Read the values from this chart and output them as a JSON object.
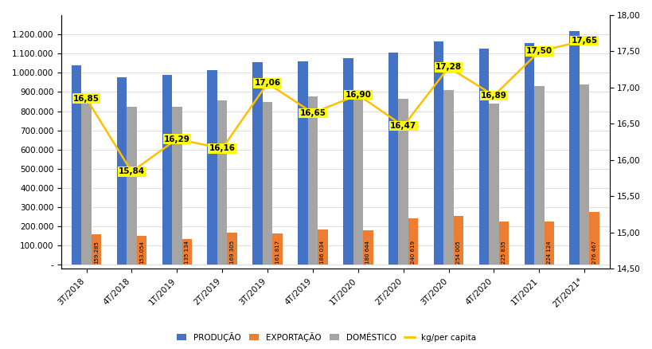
{
  "categories": [
    "3T/2018",
    "4T/2018",
    "1T/2019",
    "2T/2019",
    "3T/2019",
    "4T/2019",
    "1T/2020",
    "2T/2020",
    "3T/2020",
    "4T/2020",
    "1T/2021",
    "2T/2021*"
  ],
  "producao": [
    1040000,
    975000,
    990000,
    1015000,
    1055000,
    1060000,
    1075000,
    1105000,
    1165000,
    1125000,
    1155000,
    1215000
  ],
  "exportacao": [
    159285,
    153054,
    135134,
    169305,
    161817,
    186034,
    180644,
    240619,
    254005,
    225835,
    224124,
    276467
  ],
  "domestico": [
    840000,
    825000,
    825000,
    855000,
    850000,
    875000,
    865000,
    865000,
    910000,
    840000,
    930000,
    940000
  ],
  "kg_per_capita": [
    16.85,
    15.84,
    16.29,
    16.16,
    17.06,
    16.65,
    16.9,
    16.47,
    17.28,
    16.89,
    17.5,
    17.65
  ],
  "exportacao_labels": [
    "159.285",
    "153.054",
    "135 134",
    "169 305",
    "161 817",
    "186 034",
    "180 644",
    "240 619",
    "254 005",
    "225 835",
    "224 124",
    "276 467"
  ],
  "color_producao": "#4472C4",
  "color_exportacao": "#ED7D31",
  "color_domestico": "#A5A5A5",
  "color_line": "#FFC000",
  "color_label_bg": "#FFFF00",
  "ylim_left": [
    -20000,
    1300000
  ],
  "ylim_right": [
    14.5,
    18.0
  ],
  "yticks_left": [
    0,
    100000,
    200000,
    300000,
    400000,
    500000,
    600000,
    700000,
    800000,
    900000,
    1000000,
    1100000,
    1200000
  ],
  "yticks_right": [
    14.5,
    15.0,
    15.5,
    16.0,
    16.5,
    17.0,
    17.5,
    18.0
  ],
  "legend_labels": [
    "PRODUÇÃO",
    "EXPORTAÇÃO",
    "DOMÉSTICO",
    "kg/per capita"
  ],
  "bar_width": 0.22,
  "fig_width": 8.2,
  "fig_height": 4.38,
  "fig_dpi": 100
}
